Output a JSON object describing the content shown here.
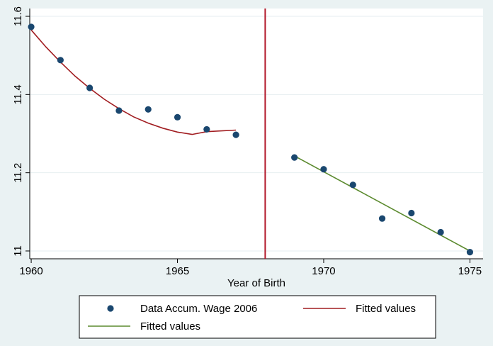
{
  "chart_data": {
    "type": "scatter",
    "title": "",
    "xlabel": "Year of Birth",
    "ylabel": "",
    "xlim": [
      1959.95,
      1975.45
    ],
    "ylim": [
      10.98,
      11.62
    ],
    "x_ticks": [
      1960,
      1965,
      1970,
      1975
    ],
    "y_ticks": [
      11,
      11.2,
      11.4,
      11.6
    ],
    "x_tick_labels": [
      "1960",
      "1965",
      "1970",
      "1975"
    ],
    "y_tick_labels": [
      "11",
      "11.2",
      "11.4",
      "11.6"
    ],
    "grid": true,
    "legend_position": "bottom",
    "cutoff_line": {
      "x": 1968,
      "color": "#b2182b"
    },
    "series": [
      {
        "name": "Data Accum. Wage 2006",
        "kind": "scatter",
        "color": "#1a476f",
        "x": [
          1960,
          1961,
          1962,
          1963,
          1964,
          1965,
          1966,
          1967,
          1969,
          1970,
          1971,
          1972,
          1973,
          1974,
          1975
        ],
        "y": [
          11.573,
          11.488,
          11.417,
          11.359,
          11.362,
          11.342,
          11.311,
          11.297,
          11.239,
          11.209,
          11.169,
          11.083,
          11.097,
          11.048,
          10.997
        ]
      },
      {
        "name": "Fitted values",
        "kind": "line",
        "color": "#a11d21",
        "x": [
          1960,
          1960.5,
          1961,
          1961.5,
          1962,
          1962.5,
          1963,
          1963.5,
          1964,
          1964.5,
          1965,
          1965.5,
          1966,
          1966.5,
          1967
        ],
        "y": [
          11.565,
          11.522,
          11.483,
          11.447,
          11.416,
          11.388,
          11.364,
          11.343,
          11.327,
          11.314,
          11.304,
          11.298,
          11.305,
          11.307,
          11.309
        ]
      },
      {
        "name": "Fitted values",
        "kind": "line",
        "color": "#5b8a2e",
        "x": [
          1969,
          1975
        ],
        "y": [
          11.243,
          11.0
        ]
      }
    ]
  }
}
